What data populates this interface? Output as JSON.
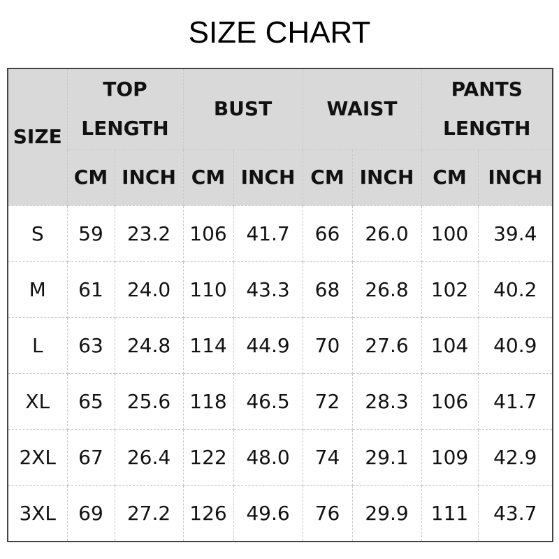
{
  "title": "SIZE CHART",
  "header": {
    "size": "SIZE",
    "groups": [
      {
        "line1": "TOP",
        "line2": "LENGTH"
      },
      {
        "line1": "BUST",
        "line2": ""
      },
      {
        "line1": "WAIST",
        "line2": ""
      },
      {
        "line1": "PANTS",
        "line2": "LENGTH"
      }
    ],
    "units": [
      "CM",
      "INCH",
      "CM",
      "INCH",
      "CM",
      "INCH",
      "CM",
      "INCH"
    ]
  },
  "rows": [
    [
      "S",
      "59",
      "23.2",
      "106",
      "41.7",
      "66",
      "26.0",
      "100",
      "39.4"
    ],
    [
      "M",
      "61",
      "24.0",
      "110",
      "43.3",
      "68",
      "26.8",
      "102",
      "40.2"
    ],
    [
      "L",
      "63",
      "24.8",
      "114",
      "44.9",
      "70",
      "27.6",
      "104",
      "40.9"
    ],
    [
      "XL",
      "65",
      "25.6",
      "118",
      "46.5",
      "72",
      "28.3",
      "106",
      "41.7"
    ],
    [
      "2XL",
      "67",
      "26.4",
      "122",
      "48.0",
      "74",
      "29.1",
      "109",
      "42.9"
    ],
    [
      "3XL",
      "69",
      "27.2",
      "126",
      "49.6",
      "76",
      "29.9",
      "111",
      "43.7"
    ]
  ],
  "colors": {
    "header_bg": "#d9d9d9",
    "border": "#444444"
  }
}
